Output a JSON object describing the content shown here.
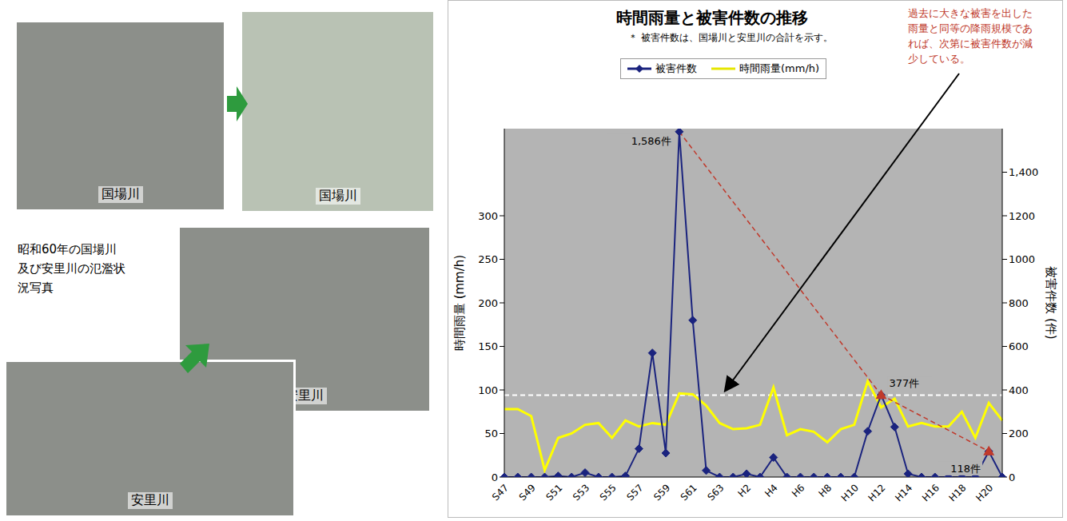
{
  "photos": {
    "caption": "昭和60年の国場川及び安里川の氾濫状況写真",
    "items": [
      {
        "label": "国場川"
      },
      {
        "label": "国場川"
      },
      {
        "label": "安里川"
      },
      {
        "label": "安里川"
      }
    ]
  },
  "chart_data": {
    "type": "line",
    "title": "時間雨量と被害件数の推移",
    "subtitle": "＊ 被害件数は、国場川と安里川の合計を示す。",
    "y_label": "時間雨量 (mm/h)",
    "y2_label": "被害件数 (件)",
    "categories": [
      "S47",
      null,
      "S49",
      null,
      "S51",
      null,
      "S53",
      null,
      "S55",
      null,
      "S57",
      null,
      "S59",
      null,
      "S61",
      null,
      "S63",
      null,
      "H2",
      null,
      "H4",
      null,
      "H6",
      null,
      "H8",
      null,
      "H10",
      null,
      "H12",
      null,
      "H14",
      null,
      "H16",
      null,
      "H18",
      null,
      "H20",
      null
    ],
    "series": [
      {
        "name": "被害件数",
        "color": "#1a237e",
        "marker": "diamond",
        "axis": "y2",
        "values": [
          0,
          0,
          0,
          0,
          5,
          0,
          20,
          0,
          0,
          5,
          130,
          570,
          110,
          1586,
          720,
          30,
          0,
          0,
          15,
          0,
          90,
          0,
          0,
          0,
          0,
          0,
          0,
          210,
          377,
          230,
          15,
          0,
          0,
          0,
          0,
          0,
          118,
          0
        ]
      },
      {
        "name": "時間雨量(mm/h)",
        "color": "#ffff00",
        "values": [
          78,
          78,
          70,
          8,
          45,
          50,
          60,
          62,
          45,
          65,
          58,
          62,
          60,
          96,
          95,
          82,
          62,
          55,
          56,
          60,
          103,
          48,
          55,
          52,
          40,
          55,
          60,
          110,
          80,
          90,
          58,
          62,
          58,
          58,
          75,
          45,
          85,
          65
        ]
      }
    ],
    "ylim": [
      0,
      400
    ],
    "yticks": [
      0,
      50,
      100,
      150,
      200,
      250,
      300
    ],
    "y2lim": [
      0,
      1600
    ],
    "y2ticks": [
      0,
      200,
      400,
      600,
      800,
      1000,
      1200,
      {
        "value": 1400,
        "label": "1,400"
      }
    ],
    "grid": false,
    "legend": "top",
    "reference_line": {
      "value": 94,
      "color": "#ffffff",
      "line_style": "dashed"
    },
    "trend_line": {
      "color": "#c0392b",
      "line_style": "dashed",
      "marker": "triangle",
      "points": [
        {
          "x": 13,
          "value": 1586
        },
        {
          "x": 28,
          "value": 377
        },
        {
          "x": 36,
          "value": 118
        }
      ]
    },
    "annotations": [
      {
        "text": "1,586件",
        "x": 13,
        "value": 1586,
        "axis": "y2"
      },
      {
        "text": "377件",
        "x": 28,
        "value": 377,
        "axis": "y2"
      },
      {
        "text": "118件",
        "x": 36,
        "value": 118,
        "axis": "y2"
      }
    ],
    "note": {
      "text": "過去に大きな被害を出した雨量と同等の降雨規模であれば、次第に被害件数が減少している。",
      "color": "#c0392b"
    }
  }
}
